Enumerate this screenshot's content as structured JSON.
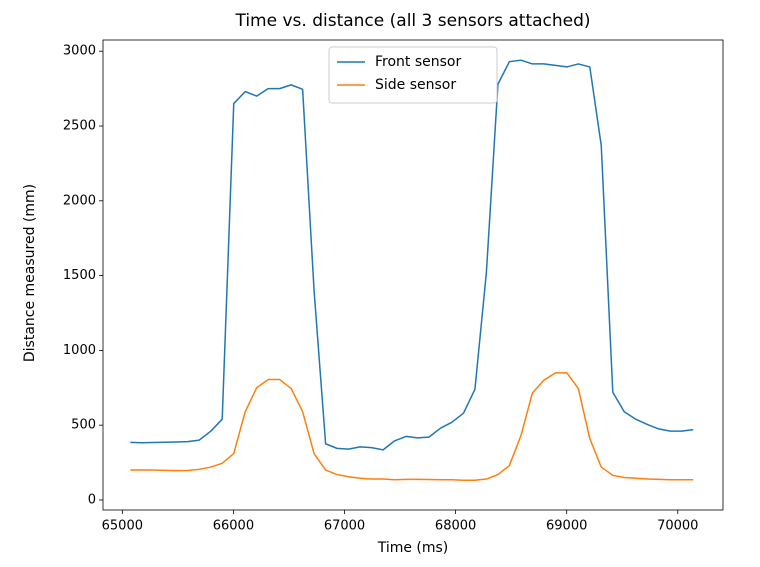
{
  "chart_data": {
    "type": "line",
    "title": "Time vs. distance (all 3 sensors attached)",
    "x_label": "Time (ms)",
    "y_label": "Distance measured (mm)",
    "x": [
      65072,
      65175,
      65279,
      65382,
      65486,
      65589,
      65692,
      65796,
      65899,
      66003,
      66106,
      66209,
      66313,
      66416,
      66520,
      66623,
      66726,
      66830,
      66933,
      67037,
      67140,
      67243,
      67347,
      67450,
      67554,
      67657,
      67760,
      67864,
      67967,
      68071,
      68174,
      68277,
      68381,
      68484,
      68588,
      68691,
      68794,
      68898,
      69001,
      69105,
      69208,
      69311,
      69415,
      69518,
      69622,
      69725,
      69828,
      69932,
      70035,
      70139
    ],
    "series": [
      {
        "name": "Front sensor",
        "color": "#1f77b4",
        "values": [
          385,
          383,
          384,
          386,
          388,
          390,
          400,
          460,
          540,
          2650,
          2730,
          2700,
          2750,
          2750,
          2775,
          2745,
          1400,
          375,
          345,
          340,
          355,
          350,
          335,
          395,
          425,
          415,
          420,
          480,
          520,
          580,
          740,
          1520,
          2780,
          2930,
          2940,
          2915,
          2915,
          2905,
          2895,
          2915,
          2895,
          2370,
          720,
          590,
          540,
          505,
          475,
          460,
          460,
          470
        ]
      },
      {
        "name": "Side sensor",
        "color": "#ff7f0e",
        "values": [
          200,
          200,
          200,
          198,
          196,
          197,
          205,
          220,
          245,
          310,
          590,
          750,
          805,
          805,
          745,
          590,
          310,
          200,
          170,
          155,
          145,
          140,
          140,
          135,
          138,
          138,
          137,
          135,
          135,
          132,
          132,
          140,
          170,
          230,
          430,
          715,
          800,
          850,
          850,
          745,
          410,
          220,
          165,
          150,
          145,
          140,
          138,
          135,
          135,
          135
        ]
      }
    ],
    "xlim": [
      64826,
      70407
    ],
    "ylim": [
      -67,
      3075
    ],
    "xticks": [
      65000,
      66000,
      67000,
      68000,
      69000,
      70000
    ],
    "yticks": [
      0,
      500,
      1000,
      1500,
      2000,
      2500,
      3000
    ],
    "legend": "upper center",
    "grid": false
  }
}
